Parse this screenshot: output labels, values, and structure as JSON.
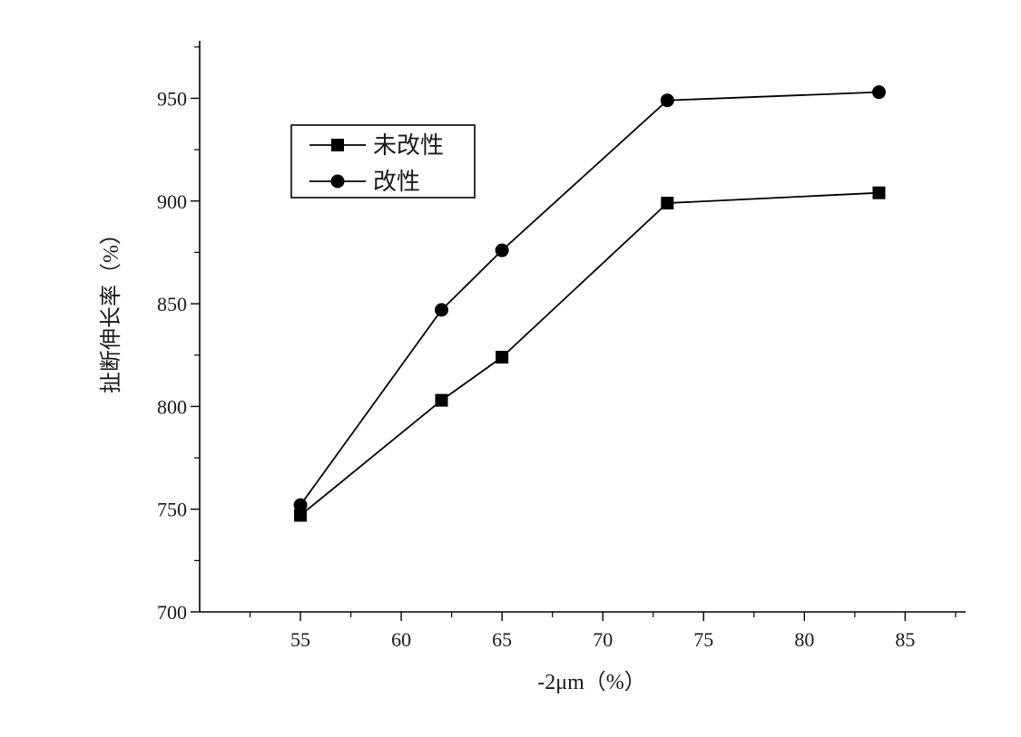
{
  "chart_data": {
    "type": "line",
    "xlabel": "-2μm（%）",
    "ylabel": "扯断伸长率（%）",
    "xlim": [
      50,
      88
    ],
    "ylim": [
      700,
      978
    ],
    "x_ticks": [
      55,
      60,
      65,
      70,
      75,
      80,
      85
    ],
    "y_ticks": [
      700,
      750,
      800,
      850,
      900,
      950
    ],
    "grid": false,
    "legend_position": "top-left",
    "series": [
      {
        "name": "未改性",
        "marker": "square",
        "color": "#000000",
        "points": [
          {
            "x": 55,
            "y": 747
          },
          {
            "x": 62,
            "y": 803
          },
          {
            "x": 65,
            "y": 824
          },
          {
            "x": 73.2,
            "y": 899
          },
          {
            "x": 83.7,
            "y": 904
          }
        ]
      },
      {
        "name": "改性",
        "marker": "circle",
        "color": "#000000",
        "points": [
          {
            "x": 55,
            "y": 752
          },
          {
            "x": 62,
            "y": 847
          },
          {
            "x": 65,
            "y": 876
          },
          {
            "x": 73.2,
            "y": 949
          },
          {
            "x": 83.7,
            "y": 953
          }
        ]
      }
    ]
  }
}
